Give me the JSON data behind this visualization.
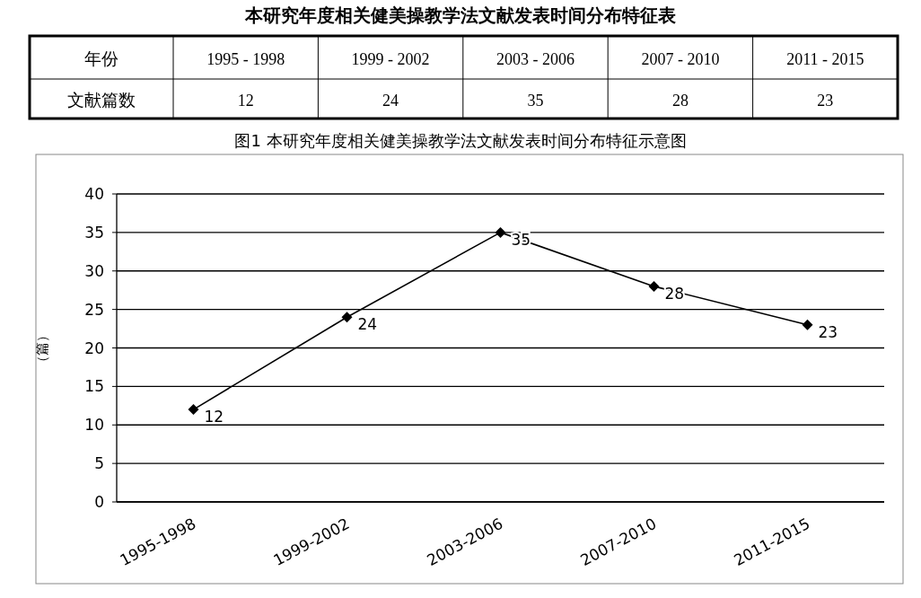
{
  "chart_data": [
    {
      "type": "other",
      "title": "本研究年度相关健美操教学法文献发表时间分布特征表",
      "categories": [
        "1995 - 1998",
        "1999 - 2002",
        "2003 - 2006",
        "2007 - 2010",
        "2011 - 2015"
      ],
      "values": [
        12,
        24,
        35,
        28,
        23
      ],
      "data_labels": true,
      "annotations": [
        "年份",
        "文献篇数"
      ]
    },
    {
      "type": "line",
      "title": "图1 本研究年度相关健美操教学法文献发表时间分布特征示意图",
      "ylabel": "（篇）",
      "categories": [
        "1995-1998",
        "1999-2002",
        "2003-2006",
        "2007-2010",
        "2011-2015"
      ],
      "series": [
        {
          "color": "#000000",
          "values": [
            12,
            24,
            35,
            28,
            23
          ]
        }
      ],
      "ylim": [
        0,
        40
      ],
      "yticks": [
        0,
        5,
        10,
        15,
        20,
        25,
        30,
        35,
        40
      ],
      "grid": "y",
      "marker": "diamond",
      "line_style": "solid",
      "data_labels": true
    }
  ]
}
